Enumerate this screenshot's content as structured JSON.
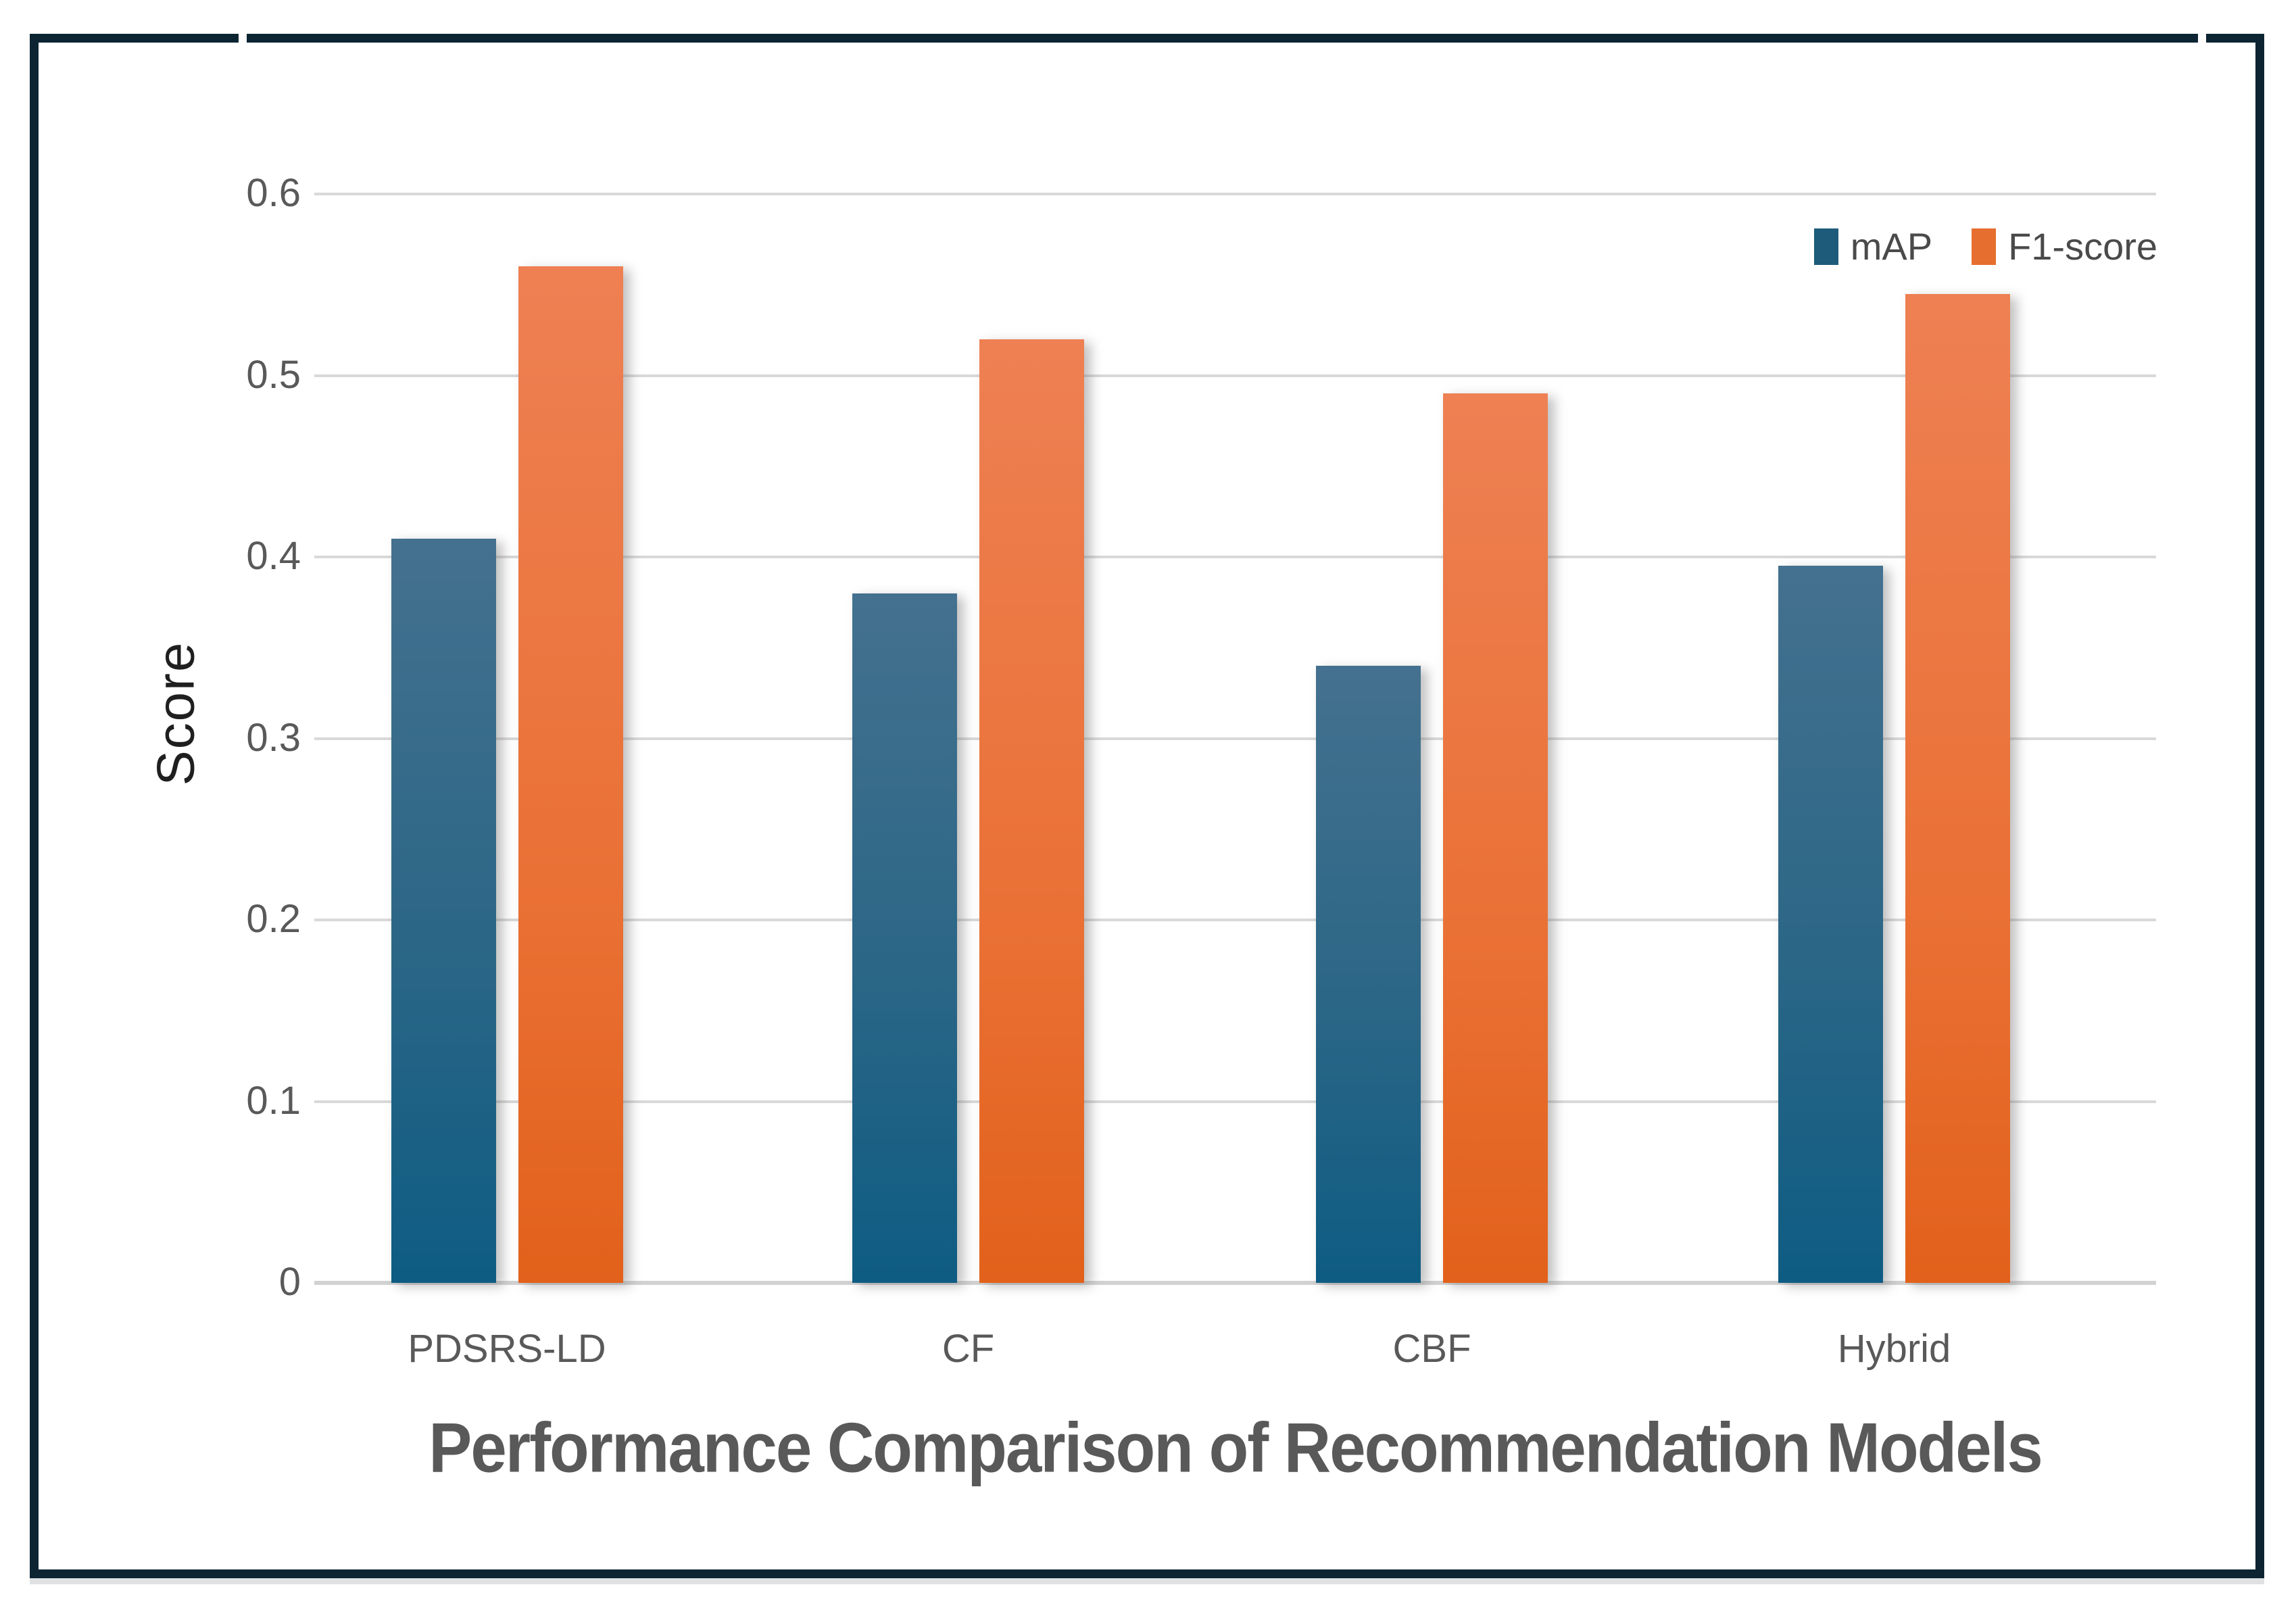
{
  "chart_data": {
    "type": "bar",
    "title": "Performance Comparison of Recommendation Models",
    "xlabel": "",
    "ylabel": "Score",
    "categories": [
      "PDSRS-LD",
      "CF",
      "CBF",
      "Hybrid"
    ],
    "series": [
      {
        "name": "mAP",
        "values": [
          0.41,
          0.38,
          0.34,
          0.395
        ],
        "color_top": "#44718F",
        "color_bottom": "#0E5C83",
        "legend_color": "#1E5B7A"
      },
      {
        "name": "F1-score",
        "values": [
          0.56,
          0.52,
          0.49,
          0.545
        ],
        "color_top": "#EE8053",
        "color_bottom": "#E2611B",
        "legend_color": "#E66E2E"
      }
    ],
    "ylim": [
      0,
      0.6
    ],
    "ytick_labels": [
      "0.6",
      "0.5",
      "0.4",
      "0.3",
      "0.2",
      "0.1",
      "0"
    ],
    "ytick_values": [
      0.6,
      0.5,
      0.4,
      0.3,
      0.2,
      0.1,
      0
    ],
    "grid": "horizontal",
    "legend_position": "top-right"
  },
  "frame": {
    "border_color": "#0d2533",
    "gridline_color": "#d9d9d9",
    "text_color": "#595959",
    "background": "#ffffff"
  }
}
